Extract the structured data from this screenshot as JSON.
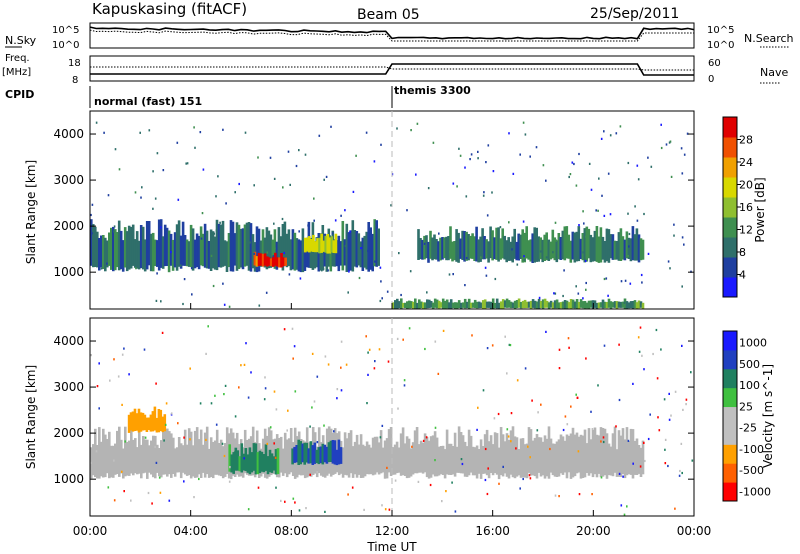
{
  "header": {
    "station": "Kapuskasing (fitACF)",
    "beam": "Beam 05",
    "date": "25/Sep/2011"
  },
  "top_panels": {
    "nsky_label": "N.Sky",
    "nsky_ticks": [
      "10^5",
      "10^0"
    ],
    "nsearch_label": "N.Search",
    "nsearch_ticks": [
      "10^5",
      "10^0"
    ],
    "freq_label": "Freq.",
    "freq_unit": "[MHz]",
    "freq_ticks": [
      "18",
      "8"
    ],
    "nave_label": "Nave",
    "nave_ticks": [
      "60",
      "0"
    ],
    "cpid_label": "CPID",
    "cpid_modes": [
      {
        "name": "normal (fast) 151",
        "start_hour": 0
      },
      {
        "name": "themis 3300",
        "start_hour": 12
      }
    ]
  },
  "x_axis": {
    "label": "Time UT",
    "ticks": [
      "00:00",
      "04:00",
      "08:00",
      "12:00",
      "16:00",
      "20:00",
      "00:00"
    ]
  },
  "colors": {
    "power_scale": [
      "#1a1aff",
      "#1f3fa0",
      "#2f6f6a",
      "#3f8f50",
      "#8fbf30",
      "#d8d800",
      "#f0a000",
      "#f05000",
      "#e00000"
    ],
    "velocity_scale": [
      "#ff0000",
      "#ff6000",
      "#ffa000",
      "#c0c0c0",
      "#c0c0c0",
      "#40c040",
      "#208060",
      "#2040c0",
      "#1a1aff"
    ],
    "ground_scatter": "#b4b4b4"
  },
  "chart_data": [
    {
      "type": "heatmap",
      "name": "power",
      "ylabel": "Slant Range [km]",
      "yticks": [
        "1000",
        "2000",
        "3000",
        "4000"
      ],
      "ylim": [
        200,
        4500
      ],
      "xlim_hours": [
        0,
        24
      ],
      "colorbar_label": "Power [dB]",
      "colorbar_ticks": [
        "4",
        "8",
        "12",
        "16",
        "20",
        "24",
        "28"
      ],
      "colorbar_range": [
        0,
        32
      ],
      "features": [
        {
          "desc": "main scatter band",
          "t_start": 0,
          "t_end": 11.5,
          "range_low": 1000,
          "range_high": 2000,
          "power_db": 8
        },
        {
          "desc": "enhanced patch",
          "t_start": 6.5,
          "t_end": 7.8,
          "range_low": 1100,
          "range_high": 1400,
          "power_db": 28
        },
        {
          "desc": "enhanced patch",
          "t_start": 8.5,
          "t_end": 9.8,
          "range_low": 1400,
          "range_high": 1800,
          "power_db": 20
        },
        {
          "desc": "themis band",
          "t_start": 13,
          "t_end": 22,
          "range_low": 1200,
          "range_high": 1900,
          "power_db": 10
        },
        {
          "desc": "near range band",
          "t_start": 12,
          "t_end": 22,
          "range_low": 200,
          "range_high": 400,
          "power_db": 12
        }
      ]
    },
    {
      "type": "heatmap",
      "name": "velocity",
      "ylabel": "Slant Range [km]",
      "yticks": [
        "1000",
        "2000",
        "3000",
        "4000"
      ],
      "ylim": [
        200,
        4500
      ],
      "xlim_hours": [
        0,
        24
      ],
      "colorbar_label": "Velocity [m s^-1]",
      "colorbar_ticks": [
        "1000",
        "500",
        "100",
        "25",
        "-25",
        "-100",
        "-500",
        "-1000"
      ],
      "features": [
        {
          "desc": "ground scatter band",
          "t_start": 0,
          "t_end": 22,
          "range_low": 1000,
          "range_high": 2000,
          "velocity": 0
        },
        {
          "desc": "negative velocity patch",
          "t_start": 1.5,
          "t_end": 3,
          "range_low": 2000,
          "range_high": 2500,
          "velocity": -300
        },
        {
          "desc": "mixed patch",
          "t_start": 5.5,
          "t_end": 7.5,
          "range_low": 1100,
          "range_high": 1700,
          "velocity": 200
        },
        {
          "desc": "positive patch",
          "t_start": 8,
          "t_end": 10,
          "range_low": 1300,
          "range_high": 1800,
          "velocity": 500
        }
      ]
    }
  ]
}
